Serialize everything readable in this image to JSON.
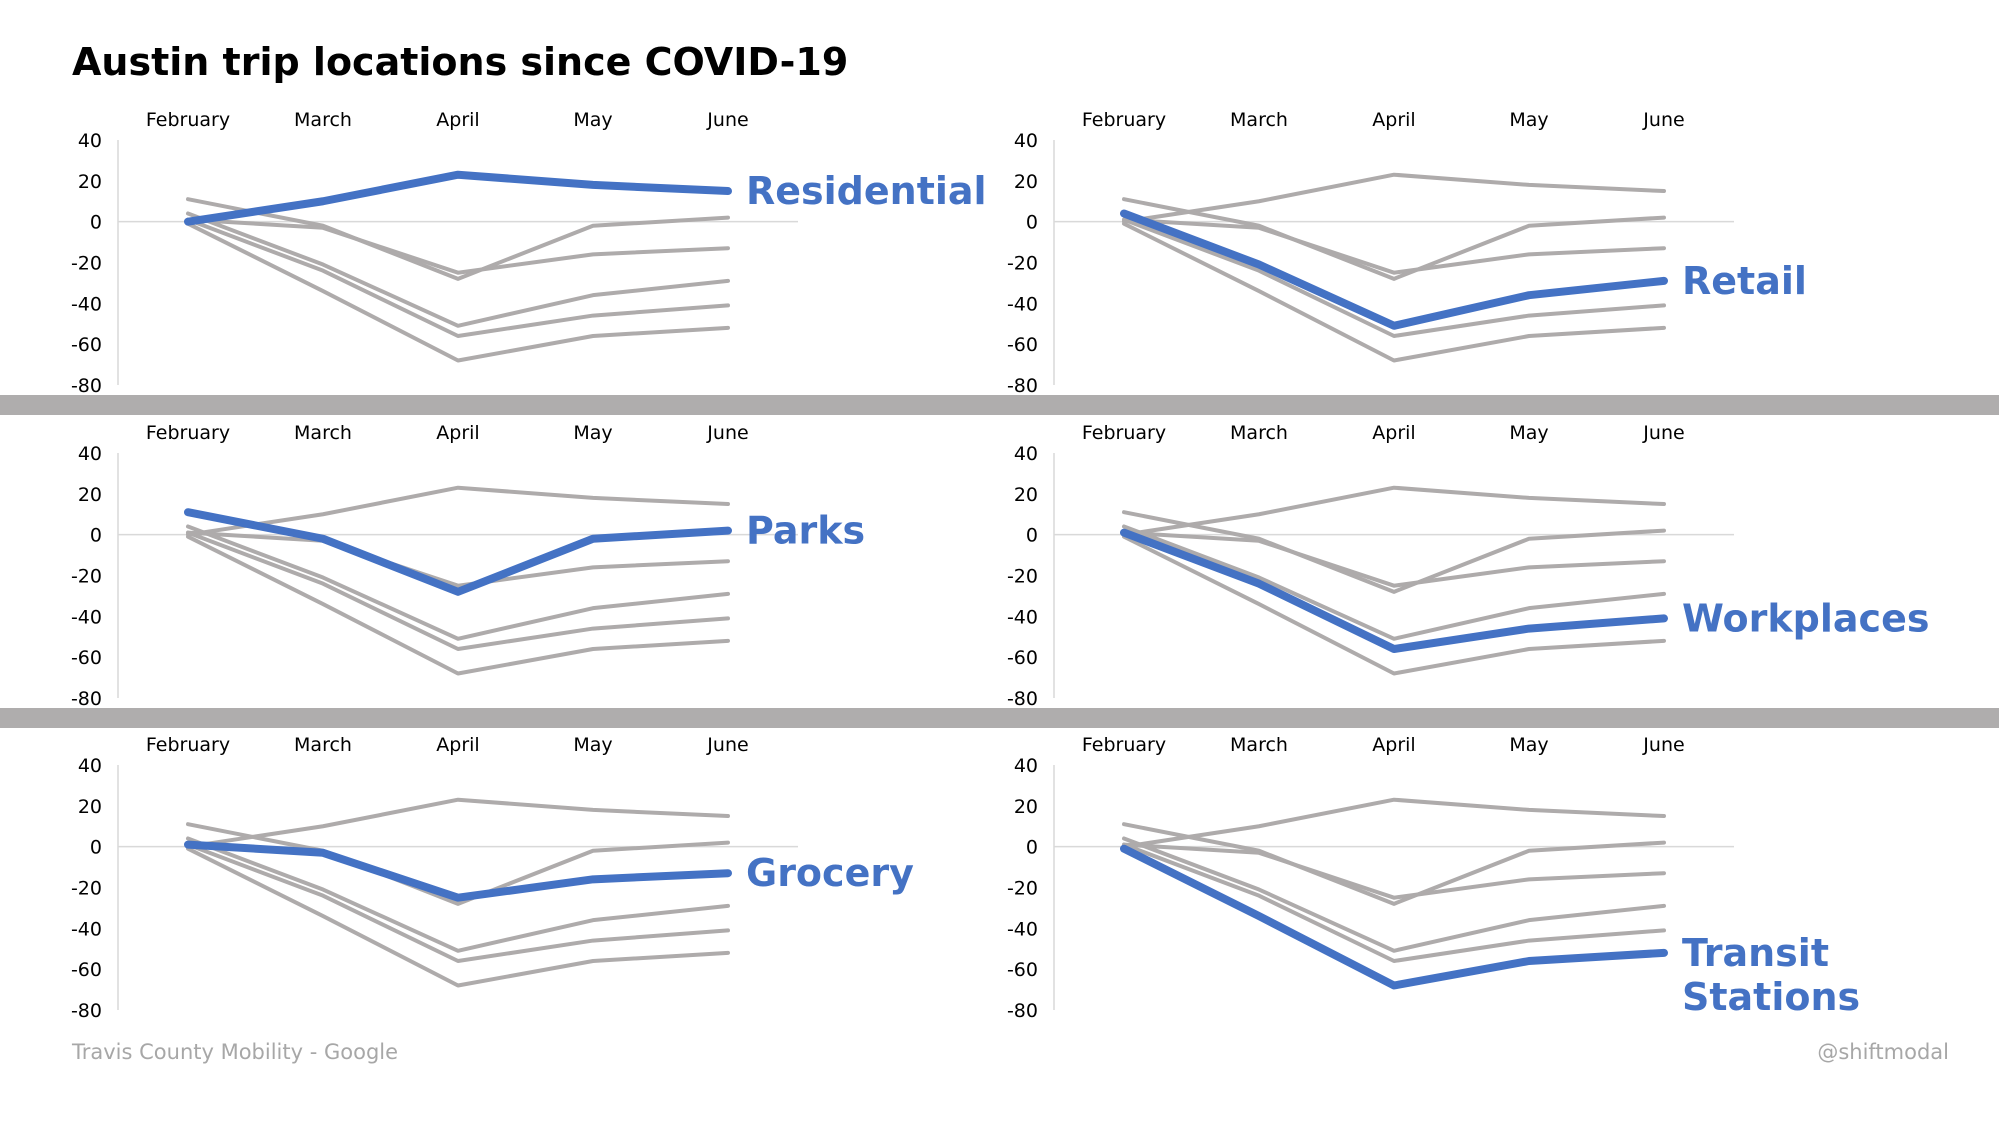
{
  "title": "Austin trip locations since COVID-19",
  "footer": {
    "source": "Travis County Mobility - Google",
    "credit": "@shiftmodal"
  },
  "colors": {
    "highlight": "#4472c4",
    "background_series": "#aeabab",
    "band": "#afadad"
  },
  "chart_data": {
    "type": "line",
    "months": [
      "February",
      "March",
      "April",
      "May",
      "June"
    ],
    "yticks": [
      40,
      20,
      0,
      -20,
      -40,
      -60,
      -80
    ],
    "ylim": [
      -80,
      40
    ],
    "grid": false,
    "series": [
      {
        "name": "Residential",
        "values": [
          0,
          10,
          23,
          18,
          15
        ]
      },
      {
        "name": "Retail",
        "values": [
          4,
          -21,
          -51,
          -36,
          -29
        ]
      },
      {
        "name": "Parks",
        "values": [
          11,
          -2,
          -28,
          -2,
          2
        ]
      },
      {
        "name": "Workplaces",
        "values": [
          1,
          -24,
          -56,
          -46,
          -41
        ]
      },
      {
        "name": "Grocery",
        "values": [
          1,
          -3,
          -25,
          -16,
          -13
        ]
      },
      {
        "name": "Transit Stations",
        "values": [
          -1,
          -34,
          -68,
          -56,
          -52
        ]
      }
    ],
    "panels": [
      {
        "highlight": 0,
        "label_lines": [
          "Residential"
        ]
      },
      {
        "highlight": 1,
        "label_lines": [
          "Retail"
        ]
      },
      {
        "highlight": 2,
        "label_lines": [
          "Parks"
        ]
      },
      {
        "highlight": 3,
        "label_lines": [
          "Workplaces"
        ]
      },
      {
        "highlight": 4,
        "label_lines": [
          "Grocery"
        ]
      },
      {
        "highlight": 5,
        "label_lines": [
          "Transit",
          "Stations"
        ]
      }
    ]
  }
}
